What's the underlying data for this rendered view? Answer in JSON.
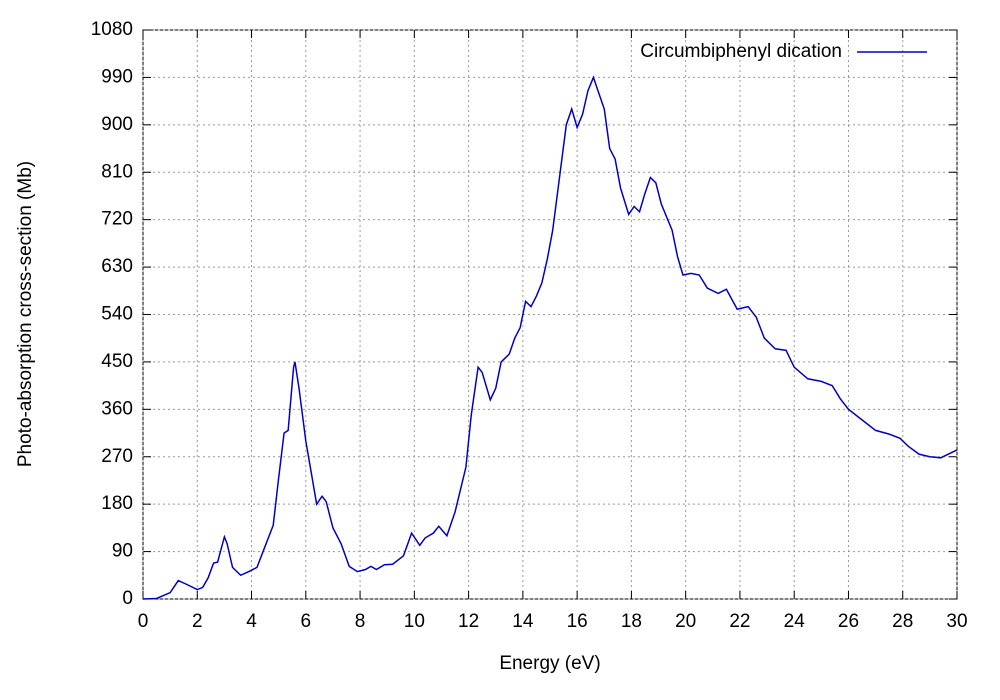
{
  "chart_data": {
    "type": "line",
    "xlabel": "Energy (eV)",
    "ylabel": "Photo-absorption cross-section (Mb)",
    "xlim": [
      0,
      30
    ],
    "ylim": [
      0,
      1080
    ],
    "xticks": [
      0,
      2,
      4,
      6,
      8,
      10,
      12,
      14,
      16,
      18,
      20,
      22,
      24,
      26,
      28,
      30
    ],
    "yticks": [
      0,
      90,
      180,
      270,
      360,
      450,
      540,
      630,
      720,
      810,
      900,
      990,
      1080
    ],
    "grid": true,
    "legend": "top-right",
    "x": [
      0,
      0.5,
      1.0,
      1.3,
      1.6,
      2.0,
      2.2,
      2.4,
      2.6,
      2.75,
      3.0,
      3.1,
      3.3,
      3.6,
      3.9,
      4.2,
      4.5,
      4.8,
      5.0,
      5.2,
      5.35,
      5.55,
      5.6,
      5.75,
      6.0,
      6.2,
      6.4,
      6.6,
      6.75,
      7.0,
      7.3,
      7.6,
      7.9,
      8.2,
      8.4,
      8.6,
      8.9,
      9.2,
      9.6,
      9.9,
      10.2,
      10.4,
      10.7,
      10.9,
      11.2,
      11.5,
      11.9,
      12.1,
      12.35,
      12.5,
      12.8,
      13.0,
      13.2,
      13.5,
      13.7,
      13.9,
      14.1,
      14.3,
      14.5,
      14.7,
      14.9,
      15.1,
      15.3,
      15.6,
      15.8,
      16.0,
      16.2,
      16.4,
      16.6,
      16.8,
      17.0,
      17.2,
      17.4,
      17.6,
      17.9,
      18.1,
      18.3,
      18.5,
      18.7,
      18.9,
      19.1,
      19.3,
      19.5,
      19.7,
      19.9,
      20.2,
      20.5,
      20.8,
      21.2,
      21.5,
      21.9,
      22.3,
      22.6,
      22.9,
      23.3,
      23.7,
      24.0,
      24.5,
      25.0,
      25.4,
      25.7,
      26.0,
      26.5,
      27.0,
      27.5,
      27.9,
      28.2,
      28.6,
      29.0,
      29.4,
      29.8,
      30.0
    ],
    "series": [
      {
        "name": "Circumbiphenyl dication",
        "color": "#0000cc",
        "values": [
          0,
          1,
          12,
          35,
          28,
          18,
          22,
          40,
          68,
          70,
          118,
          105,
          60,
          45,
          52,
          60,
          100,
          140,
          230,
          315,
          320,
          440,
          450,
          400,
          300,
          240,
          180,
          195,
          185,
          135,
          105,
          62,
          52,
          56,
          62,
          56,
          65,
          66,
          82,
          125,
          102,
          116,
          125,
          138,
          120,
          165,
          250,
          350,
          440,
          430,
          378,
          400,
          450,
          465,
          495,
          515,
          565,
          555,
          575,
          600,
          645,
          700,
          780,
          900,
          930,
          895,
          920,
          965,
          990,
          960,
          930,
          855,
          835,
          780,
          730,
          745,
          735,
          770,
          800,
          790,
          750,
          725,
          700,
          650,
          615,
          618,
          615,
          590,
          580,
          588,
          550,
          555,
          535,
          495,
          475,
          472,
          440,
          418,
          413,
          405,
          380,
          360,
          340,
          320,
          313,
          305,
          290,
          275,
          270,
          268,
          278,
          283
        ]
      }
    ]
  }
}
